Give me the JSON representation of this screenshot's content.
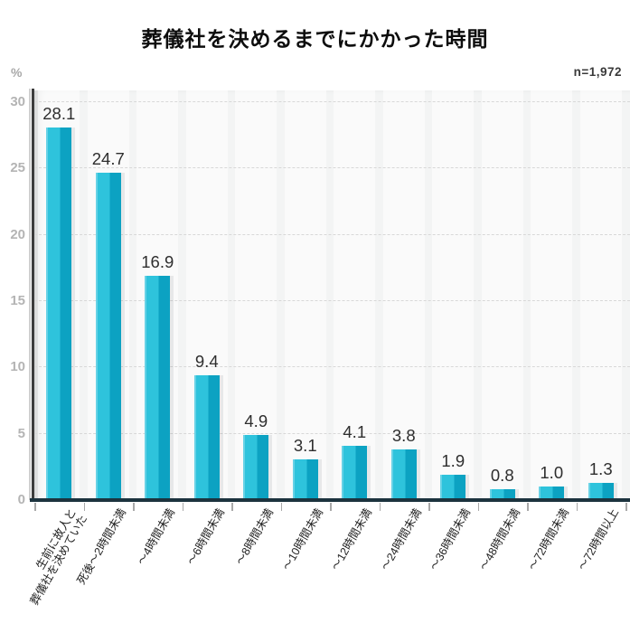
{
  "header": {
    "title": "葬儀社を決めるまでにかかった時間",
    "unit_label": "%",
    "sample_label": "n=1,972"
  },
  "chart_data": {
    "type": "bar",
    "title": "葬儀社を決めるまでにかかった時間",
    "ylabel": "%",
    "annotation": "n=1,972",
    "categories": [
      [
        "生前に故人と",
        "葬儀社を決めていた"
      ],
      [
        "死後〜2時間未満"
      ],
      [
        "〜4時間未満"
      ],
      [
        "〜6時間未満"
      ],
      [
        "〜8時間未満"
      ],
      [
        "〜10時間未満"
      ],
      [
        "〜12時間未満"
      ],
      [
        "〜24時間未満"
      ],
      [
        "〜36時間未満"
      ],
      [
        "〜48時間未満"
      ],
      [
        "〜72時間未満"
      ],
      [
        "〜72時間以上"
      ]
    ],
    "values": [
      28.1,
      24.7,
      16.9,
      9.4,
      4.9,
      3.1,
      4.1,
      3.8,
      1.9,
      0.8,
      1.0,
      1.3
    ],
    "ylim": [
      0,
      30
    ],
    "yticks": [
      0,
      5,
      10,
      15,
      20,
      25,
      30
    ],
    "grid": "horizontal-dashed",
    "legend": "none",
    "colors": {
      "bar_main": "#2ec3dc",
      "bar_dark": "#0ca2c2",
      "bar_light": "#67d2e6",
      "x_axis": "#1c333e",
      "y_axis": "#3d3d3d",
      "gridline": "#d8d8d8",
      "tick_label": "#b4b4b4",
      "value_label": "#2e2e2e",
      "plot_bg": "#f3f4f4"
    }
  }
}
